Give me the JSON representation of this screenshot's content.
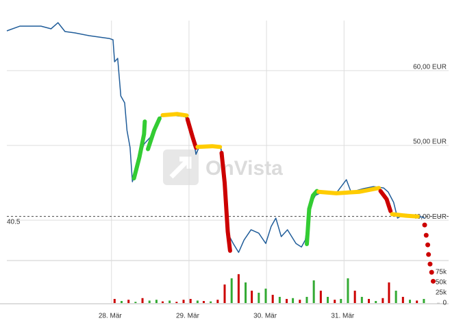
{
  "chart_data": {
    "type": "line",
    "watermark": "OnVista",
    "xlim": [
      26.65,
      32.04
    ],
    "xticks": [
      {
        "value": 28,
        "label": "28. Mär"
      },
      {
        "value": 29,
        "label": "29. Mär"
      },
      {
        "value": 30,
        "label": "30. Mär"
      },
      {
        "value": 31,
        "label": "31. Mär"
      }
    ],
    "ylim": [
      34.6,
      66.7
    ],
    "yticks": [
      {
        "value": 40,
        "label": "40,00 EUR"
      },
      {
        "value": 50,
        "label": "50,00 EUR"
      },
      {
        "value": 60,
        "label": "60,00 EUR"
      }
    ],
    "grid": true,
    "reference_line": 40.5,
    "color": "#1f5c99",
    "x": [
      26.65,
      26.82,
      27.09,
      27.22,
      27.31,
      27.4,
      27.53,
      27.71,
      27.97,
      28.02,
      28.04,
      28.08,
      28.12,
      28.17,
      28.2,
      28.24,
      28.27,
      28.33,
      28.42,
      28.5,
      28.59,
      28.65,
      28.77,
      28.95,
      29.04,
      29.09,
      29.14,
      29.3,
      29.41,
      29.46,
      29.5,
      29.57,
      29.64,
      29.71,
      29.8,
      29.9,
      29.99,
      30.06,
      30.12,
      30.19,
      30.27,
      30.38,
      30.45,
      30.5,
      30.56,
      30.63,
      30.72,
      30.89,
      31.03,
      31.09,
      31.25,
      31.38,
      31.51,
      31.57,
      31.64,
      31.69,
      31.78,
      31.96,
      32.04
    ],
    "values": [
      65.32,
      65.96,
      65.96,
      65.6,
      66.42,
      65.23,
      65.05,
      64.68,
      64.31,
      64.13,
      61.19,
      61.65,
      56.61,
      55.69,
      52.02,
      49.72,
      45.14,
      47.43,
      50.18,
      51.1,
      52.94,
      54.04,
      54.04,
      53.85,
      52.02,
      48.81,
      50.0,
      49.72,
      49.72,
      45.6,
      38.26,
      36.88,
      35.69,
      37.34,
      38.72,
      38.26,
      36.88,
      39.17,
      40.28,
      37.8,
      38.72,
      36.88,
      36.42,
      37.34,
      41.93,
      43.3,
      43.76,
      43.49,
      45.41,
      43.76,
      44.22,
      44.5,
      44.31,
      43.76,
      42.39,
      40.28,
      40.83,
      40.55,
      40.28
    ],
    "highlights": [
      {
        "color": "#33cc33",
        "x": [
          28.29,
          28.36,
          28.42,
          28.43
        ],
        "values": [
          45.6,
          48.4,
          51.5,
          53.2
        ]
      },
      {
        "color": "#33cc33",
        "x": [
          28.47,
          28.55,
          28.62
        ],
        "values": [
          49.5,
          52.0,
          53.6
        ]
      },
      {
        "color": "#ffcc00",
        "x": [
          28.66,
          28.85,
          28.97
        ],
        "values": [
          54.04,
          54.2,
          54.0
        ]
      },
      {
        "color": "#cc0000",
        "x": [
          28.98,
          29.05,
          29.09
        ],
        "values": [
          53.5,
          51.0,
          49.7
        ]
      },
      {
        "color": "#ffcc00",
        "x": [
          29.11,
          29.3,
          29.4
        ],
        "values": [
          49.8,
          49.9,
          49.8
        ]
      },
      {
        "color": "#cc0000",
        "x": [
          29.42,
          29.46,
          29.5,
          29.53
        ],
        "values": [
          49.0,
          45.0,
          38.5,
          35.9
        ]
      },
      {
        "color": "#33cc33",
        "x": [
          30.52,
          30.55,
          30.6,
          30.65
        ],
        "values": [
          36.8,
          41.5,
          43.3,
          43.9
        ]
      },
      {
        "color": "#ffcc00",
        "x": [
          30.67,
          30.9,
          31.2,
          31.45
        ],
        "values": [
          43.8,
          43.6,
          43.8,
          44.3
        ]
      },
      {
        "color": "#cc0000",
        "x": [
          31.47,
          31.55,
          31.6
        ],
        "values": [
          43.9,
          42.8,
          41.2
        ]
      },
      {
        "color": "#ffcc00",
        "x": [
          31.62,
          31.8,
          31.95
        ],
        "values": [
          40.8,
          40.6,
          40.5
        ]
      }
    ],
    "projection": {
      "color": "#cc0000",
      "x": [
        32.04,
        32.06,
        32.08,
        32.09,
        32.11,
        32.13,
        32.15
      ],
      "values": [
        39.36,
        37.98,
        36.7,
        35.41,
        34.13,
        33.03,
        31.83
      ]
    },
    "volume": {
      "ylim": [
        0,
        103000
      ],
      "yticks": [
        0,
        {
          "value": 25000,
          "label": "25k"
        },
        {
          "value": 50000,
          "label": "50k"
        },
        {
          "value": 75000,
          "label": "75k"
        }
      ],
      "x": [
        28.04,
        28.13,
        28.22,
        28.31,
        28.4,
        28.49,
        28.58,
        28.66,
        28.75,
        28.84,
        28.93,
        29.02,
        29.11,
        29.19,
        29.28,
        29.37,
        29.46,
        29.55,
        29.64,
        29.73,
        29.81,
        29.9,
        29.99,
        30.08,
        30.17,
        30.26,
        30.34,
        30.43,
        30.52,
        30.61,
        30.7,
        30.79,
        30.88,
        30.96,
        31.05,
        31.14,
        31.23,
        31.32,
        31.41,
        31.5,
        31.58,
        31.67,
        31.76,
        31.85,
        31.94,
        32.03
      ],
      "values": [
        10000,
        5000,
        8000,
        3000,
        12000,
        6000,
        8000,
        4000,
        6000,
        3000,
        8000,
        10000,
        6000,
        5000,
        4000,
        8000,
        45000,
        60000,
        70000,
        50000,
        30000,
        25000,
        35000,
        20000,
        15000,
        10000,
        12000,
        8000,
        15000,
        55000,
        30000,
        15000,
        8000,
        10000,
        60000,
        30000,
        15000,
        10000,
        5000,
        12000,
        50000,
        30000,
        15000,
        8000,
        6000,
        10000
      ],
      "colors": [
        "#cc0000",
        "#33aa33",
        "#cc0000",
        "#33aa33",
        "#cc0000",
        "#33aa33",
        "#33aa33",
        "#cc0000",
        "#33aa33",
        "#cc0000",
        "#cc0000",
        "#cc0000",
        "#33aa33",
        "#cc0000",
        "#33aa33",
        "#cc0000",
        "#cc0000",
        "#33aa33",
        "#cc0000",
        "#33aa33",
        "#cc0000",
        "#33aa33",
        "#33aa33",
        "#cc0000",
        "#33aa33",
        "#cc0000",
        "#33aa33",
        "#cc0000",
        "#33aa33",
        "#33aa33",
        "#cc0000",
        "#33aa33",
        "#cc0000",
        "#33aa33",
        "#33aa33",
        "#cc0000",
        "#33aa33",
        "#cc0000",
        "#33aa33",
        "#cc0000",
        "#cc0000",
        "#33aa33",
        "#cc0000",
        "#33aa33",
        "#cc0000",
        "#33aa33"
      ]
    }
  }
}
